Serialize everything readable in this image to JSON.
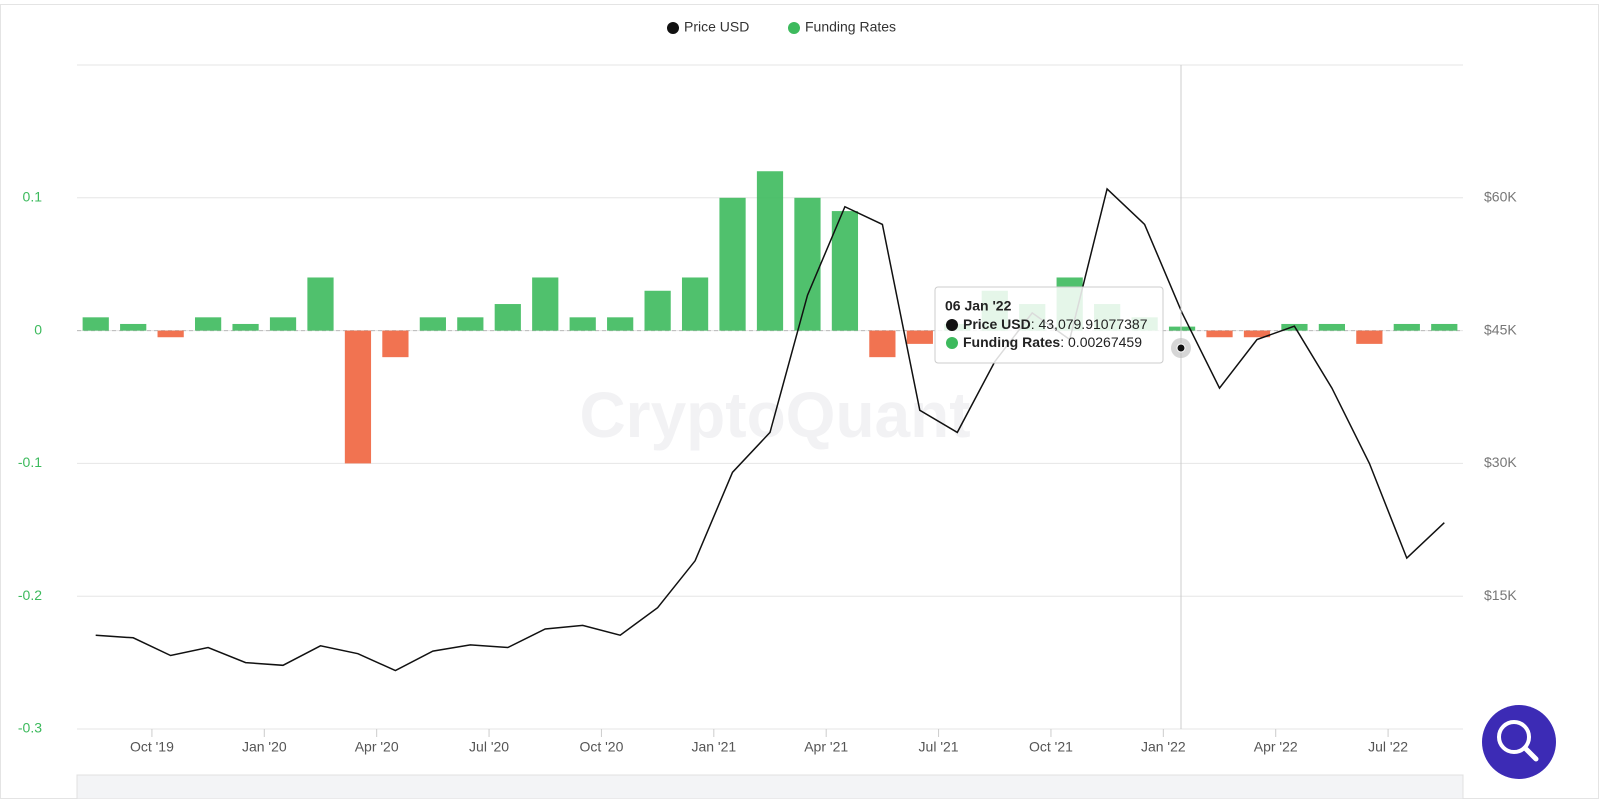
{
  "chart_data": {
    "type": "combo",
    "watermark": "CryptoQuant",
    "x": [
      "2019-08",
      "2019-09",
      "2019-10",
      "2019-11",
      "2019-12",
      "2020-01",
      "2020-02",
      "2020-03",
      "2020-04",
      "2020-05",
      "2020-06",
      "2020-07",
      "2020-08",
      "2020-09",
      "2020-10",
      "2020-11",
      "2020-12",
      "2021-01",
      "2021-02",
      "2021-03",
      "2021-04",
      "2021-05",
      "2021-06",
      "2021-07",
      "2021-08",
      "2021-09",
      "2021-10",
      "2021-11",
      "2021-12",
      "2022-01",
      "2022-02",
      "2022-03",
      "2022-04",
      "2022-05",
      "2022-06",
      "2022-07",
      "2022-08"
    ],
    "series": [
      {
        "name": "Price USD",
        "type": "line",
        "axis": "y2",
        "color": "#111111",
        "values": [
          10600,
          10300,
          8300,
          9200,
          7500,
          7200,
          9400,
          8500,
          6600,
          8800,
          9500,
          9200,
          11300,
          11700,
          10600,
          13700,
          19000,
          29000,
          33500,
          49000,
          59000,
          57000,
          36000,
          33500,
          41500,
          47000,
          44000,
          61000,
          57000,
          47000,
          38500,
          44000,
          45500,
          38500,
          30000,
          19300,
          23300
        ]
      },
      {
        "name": "Funding Rates",
        "type": "bar",
        "color": "#3dba5d",
        "negative_color": "#f0643e",
        "values": [
          0.01,
          0.005,
          -0.005,
          0.01,
          0.005,
          0.01,
          0.04,
          -0.1,
          -0.02,
          0.01,
          0.01,
          0.02,
          0.04,
          0.01,
          0.01,
          0.03,
          0.04,
          0.1,
          0.12,
          0.1,
          0.09,
          -0.02,
          -0.01,
          0.005,
          0.03,
          0.02,
          0.04,
          0.02,
          0.01,
          0.003,
          -0.005,
          -0.005,
          0.005,
          0.005,
          -0.01,
          0.005,
          0.005
        ]
      }
    ],
    "xlim": [
      "2019-08",
      "2022-09"
    ],
    "xticks": [
      {
        "value": "2019-10",
        "label": "Oct '19"
      },
      {
        "value": "2020-01",
        "label": "Jan '20"
      },
      {
        "value": "2020-04",
        "label": "Apr '20"
      },
      {
        "value": "2020-07",
        "label": "Jul '20"
      },
      {
        "value": "2020-10",
        "label": "Oct '20"
      },
      {
        "value": "2021-01",
        "label": "Jan '21"
      },
      {
        "value": "2021-04",
        "label": "Apr '21"
      },
      {
        "value": "2021-07",
        "label": "Jul '21"
      },
      {
        "value": "2021-10",
        "label": "Oct '21"
      },
      {
        "value": "2022-01",
        "label": "Jan '22"
      },
      {
        "value": "2022-04",
        "label": "Apr '22"
      },
      {
        "value": "2022-07",
        "label": "Jul '22"
      }
    ],
    "ylim": [
      -0.3,
      0.2
    ],
    "yticks": [
      -0.3,
      -0.2,
      -0.1,
      0,
      0.1
    ],
    "y2lim": [
      0,
      75000
    ],
    "y2ticks": [
      {
        "value": 15000,
        "label": "$15K"
      },
      {
        "value": 30000,
        "label": "$30K"
      },
      {
        "value": 45000,
        "label": "$45K"
      },
      {
        "value": 60000,
        "label": "$60K"
      }
    ],
    "grid": true,
    "legend": "top",
    "tooltip": {
      "date": "06 Jan '22",
      "price": "43,079.91077387",
      "funding": "0.00267459"
    }
  }
}
